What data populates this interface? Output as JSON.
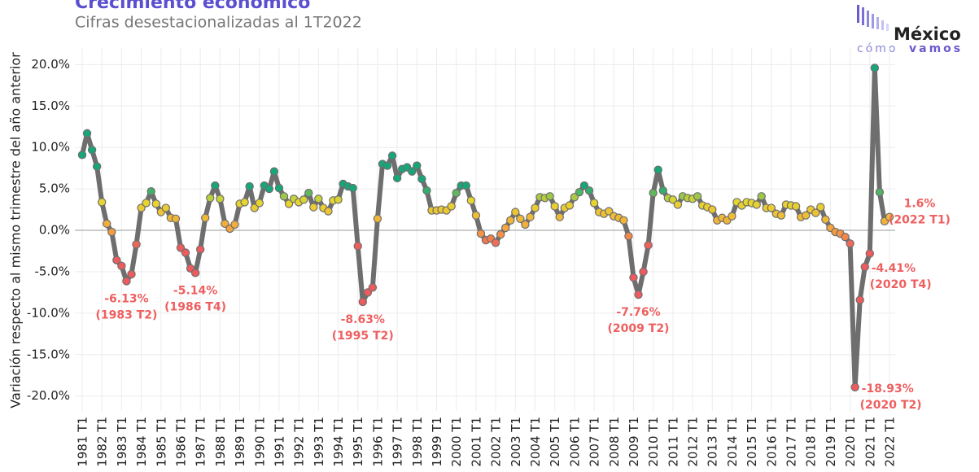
{
  "chart_data": {
    "type": "line",
    "title": "Crecimiento económico",
    "subtitle": "Cifras desestacionalizadas al 1T2022",
    "y_label": "Variación respecto al mismo trimestre del año anterior",
    "logo": {
      "name": "México",
      "prefix": "cómo",
      "suffix": "vamos"
    },
    "categories": [
      "1981 T1",
      null,
      null,
      null,
      "1982 T1",
      null,
      null,
      null,
      "1983 T1",
      null,
      null,
      null,
      "1984 T1",
      null,
      null,
      null,
      "1985 T1",
      null,
      null,
      null,
      "1986 T1",
      null,
      null,
      null,
      "1987 T1",
      null,
      null,
      null,
      "1988 T1",
      null,
      null,
      null,
      "1989 T1",
      null,
      null,
      null,
      "1990 T1",
      null,
      null,
      null,
      "1991 T1",
      null,
      null,
      null,
      "1992 T1",
      null,
      null,
      null,
      "1993 T1",
      null,
      null,
      null,
      "1994 T1",
      null,
      null,
      null,
      "1995 T1",
      null,
      null,
      null,
      "1996 T1",
      null,
      null,
      null,
      "1997 T1",
      null,
      null,
      null,
      "1998 T1",
      null,
      null,
      null,
      "1999 T1",
      null,
      null,
      null,
      "2000 T1",
      null,
      null,
      null,
      "2001 T1",
      null,
      null,
      null,
      "2002 T1",
      null,
      null,
      null,
      "2003 T1",
      null,
      null,
      null,
      "2004 T1",
      null,
      null,
      null,
      "2005 T1",
      null,
      null,
      null,
      "2006 T1",
      null,
      null,
      null,
      "2007 T1",
      null,
      null,
      null,
      "2008 T1",
      null,
      null,
      null,
      "2009 T1",
      null,
      null,
      null,
      "2010 T1",
      null,
      null,
      null,
      "2011 T1",
      null,
      null,
      null,
      "2012 T1",
      null,
      null,
      null,
      "2013 T1",
      null,
      null,
      null,
      "2014 T1",
      null,
      null,
      null,
      "2015 T1",
      null,
      null,
      null,
      "2016 T1",
      null,
      null,
      null,
      "2017 T1",
      null,
      null,
      null,
      "2018 T1",
      null,
      null,
      null,
      "2019 T1",
      null,
      null,
      null,
      "2020 T1",
      null,
      null,
      null,
      "2021 T1",
      null,
      null,
      null,
      "2022 T1"
    ],
    "values": [
      9.1,
      11.7,
      9.7,
      7.7,
      3.4,
      0.8,
      -0.2,
      -3.6,
      -4.3,
      -6.13,
      -5.3,
      -1.7,
      2.7,
      3.3,
      4.7,
      3.2,
      2.2,
      2.7,
      1.5,
      1.4,
      -2.1,
      -2.7,
      -4.6,
      -5.14,
      -2.3,
      1.5,
      3.9,
      5.4,
      3.8,
      0.8,
      0.2,
      0.7,
      3.2,
      3.4,
      5.3,
      2.7,
      3.3,
      5.4,
      5.0,
      7.1,
      5.1,
      4.1,
      3.2,
      3.8,
      3.4,
      3.7,
      4.5,
      2.8,
      3.8,
      2.7,
      2.3,
      3.6,
      3.7,
      5.6,
      5.3,
      5.1,
      -1.9,
      -8.63,
      -7.5,
      -6.9,
      1.4,
      8.0,
      7.8,
      9.0,
      6.3,
      7.4,
      7.6,
      7.1,
      7.8,
      6.2,
      4.8,
      2.4,
      2.4,
      2.5,
      2.4,
      2.9,
      4.5,
      5.4,
      5.4,
      3.6,
      1.8,
      -0.4,
      -1.2,
      -1.0,
      -1.5,
      -0.5,
      0.3,
      1.2,
      2.2,
      1.4,
      0.7,
      1.6,
      2.7,
      4.0,
      3.9,
      4.1,
      2.9,
      1.6,
      2.7,
      3.0,
      4.0,
      4.6,
      5.4,
      4.8,
      3.3,
      2.2,
      2.0,
      2.3,
      1.7,
      1.5,
      1.2,
      -0.7,
      -5.7,
      -7.76,
      -5.0,
      -1.8,
      4.5,
      7.3,
      4.8,
      3.9,
      3.7,
      3.1,
      4.1,
      3.9,
      3.8,
      4.1,
      3.0,
      2.8,
      2.5,
      1.2,
      1.5,
      1.2,
      1.7,
      3.4,
      3.0,
      3.4,
      3.3,
      3.1,
      4.1,
      2.7,
      2.7,
      2.0,
      1.8,
      3.1,
      3.0,
      2.9,
      1.6,
      1.8,
      2.5,
      2.1,
      2.8,
      1.3,
      0.3,
      -0.2,
      -0.4,
      -0.8,
      -1.6,
      -18.93,
      -8.4,
      -4.41,
      -2.8,
      19.6,
      4.6,
      1.1,
      1.6
    ],
    "value_labels": [
      null,
      null,
      null,
      null,
      null,
      null,
      null,
      null,
      null,
      "-6.13%",
      null,
      null,
      null,
      null,
      null,
      null,
      null,
      null,
      null,
      null,
      null,
      null,
      null,
      "-5.14%",
      null,
      null,
      null,
      null,
      null,
      null,
      null,
      null,
      null,
      null,
      null,
      null,
      null,
      null,
      null,
      null,
      null,
      null,
      null,
      null,
      null,
      null,
      null,
      null,
      null,
      null,
      null,
      null,
      null,
      null,
      null,
      null,
      null,
      "-8.63%",
      null,
      null,
      null,
      null,
      null,
      null,
      null,
      null,
      null,
      null,
      null,
      null,
      null,
      null,
      null,
      null,
      null,
      null,
      null,
      null,
      null,
      null,
      null,
      null,
      null,
      null,
      null,
      null,
      null,
      null,
      null,
      null,
      null,
      null,
      null,
      null,
      null,
      null,
      null,
      null,
      null,
      null,
      null,
      null,
      null,
      null,
      null,
      null,
      null,
      null,
      null,
      null,
      null,
      null,
      null,
      "-7.76%",
      null,
      null,
      null,
      null,
      null,
      null,
      null,
      null,
      null,
      null,
      null,
      null,
      null,
      null,
      null,
      null,
      null,
      null,
      null,
      null,
      null,
      null,
      null,
      null,
      null,
      null,
      null,
      null,
      null,
      null,
      null,
      null,
      null,
      null,
      null,
      null,
      null,
      null,
      null,
      null,
      null,
      null,
      null,
      "-18.93%",
      null,
      "-4.41%",
      null,
      null,
      null,
      null,
      "1.6%"
    ],
    "value_sublabels": [
      null,
      null,
      null,
      null,
      null,
      null,
      null,
      null,
      null,
      "(1983 T2)",
      null,
      null,
      null,
      null,
      null,
      null,
      null,
      null,
      null,
      null,
      null,
      null,
      null,
      "(1986 T4)",
      null,
      null,
      null,
      null,
      null,
      null,
      null,
      null,
      null,
      null,
      null,
      null,
      null,
      null,
      null,
      null,
      null,
      null,
      null,
      null,
      null,
      null,
      null,
      null,
      null,
      null,
      null,
      null,
      null,
      null,
      null,
      null,
      null,
      "(1995 T2)",
      null,
      null,
      null,
      null,
      null,
      null,
      null,
      null,
      null,
      null,
      null,
      null,
      null,
      null,
      null,
      null,
      null,
      null,
      null,
      null,
      null,
      null,
      null,
      null,
      null,
      null,
      null,
      null,
      null,
      null,
      null,
      null,
      null,
      null,
      null,
      null,
      null,
      null,
      null,
      null,
      null,
      null,
      null,
      null,
      null,
      null,
      null,
      null,
      null,
      null,
      null,
      null,
      null,
      null,
      null,
      "(2009 T2)",
      null,
      null,
      null,
      null,
      null,
      null,
      null,
      null,
      null,
      null,
      null,
      null,
      null,
      null,
      null,
      null,
      null,
      null,
      null,
      null,
      null,
      null,
      null,
      null,
      null,
      null,
      null,
      null,
      null,
      null,
      null,
      null,
      null,
      null,
      null,
      null,
      null,
      null,
      null,
      null,
      null,
      null,
      null,
      "(2020 T2)",
      null,
      "(2020 T4)",
      null,
      null,
      null,
      null,
      "(2022 T1)"
    ],
    "line_color": "#6e6e6e",
    "label_color": "#ef5f5f",
    "color_scale": [
      {
        "value": -2,
        "color": "#ee5b5e"
      },
      {
        "value": 0,
        "color": "#f5a23e"
      },
      {
        "value": 3.6,
        "color": "#e6d92e"
      },
      {
        "value": 5,
        "color": "#16a679"
      }
    ],
    "ylim": [
      -21.8,
      22
    ],
    "yticks": [
      {
        "value": -20,
        "label": "-20.0%"
      },
      {
        "value": -15,
        "label": "-15.0%"
      },
      {
        "value": -10,
        "label": "-10.0%"
      },
      {
        "value": -5,
        "label": "-5.0%"
      },
      {
        "value": 0,
        "label": "0.0%"
      },
      {
        "value": 5,
        "label": "5.0%"
      },
      {
        "value": 10,
        "label": "10.0%"
      },
      {
        "value": 15,
        "label": "15.0%"
      },
      {
        "value": 20,
        "label": "20.0%"
      }
    ],
    "grid": true
  }
}
